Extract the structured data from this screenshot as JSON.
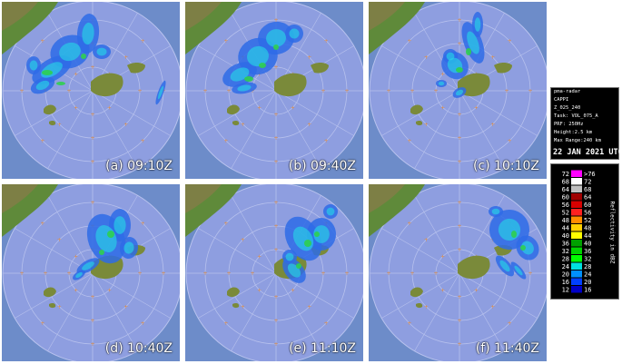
{
  "panels": [
    {
      "label": "(a) 09:10Z"
    },
    {
      "label": "(b) 09:40Z"
    },
    {
      "label": "(c) 10:10Z"
    },
    {
      "label": "(d) 10:40Z"
    },
    {
      "label": "(e) 11:10Z"
    },
    {
      "label": "(f) 11:40Z"
    }
  ],
  "info": {
    "lines": [
      "pma-radar",
      "CAPPI",
      "Z_025_240",
      "Task: VOL_075_A",
      "PRF: 250Hz",
      "Height:2.5 km",
      "Max Range:240 km"
    ],
    "date": "22 JAN 2021 UTC"
  },
  "legend": {
    "title": "Reflectivity in dBZ",
    "rows": [
      {
        "low": "72",
        "high": ">76",
        "color": "#ff00ff"
      },
      {
        "low": "68",
        "high": "72",
        "color": "#ffffff"
      },
      {
        "low": "64",
        "high": "68",
        "color": "#c0c0c0"
      },
      {
        "low": "60",
        "high": "64",
        "color": "#a00000"
      },
      {
        "low": "56",
        "high": "60",
        "color": "#d80000"
      },
      {
        "low": "52",
        "high": "56",
        "color": "#ff2020"
      },
      {
        "low": "48",
        "high": "52",
        "color": "#ff8c00"
      },
      {
        "low": "44",
        "high": "48",
        "color": "#ffd000"
      },
      {
        "low": "40",
        "high": "44",
        "color": "#ffff00"
      },
      {
        "low": "36",
        "high": "40",
        "color": "#00a000"
      },
      {
        "low": "32",
        "high": "36",
        "color": "#00d200"
      },
      {
        "low": "28",
        "high": "32",
        "color": "#00ff00"
      },
      {
        "low": "24",
        "high": "28",
        "color": "#00e0e0"
      },
      {
        "low": "20",
        "high": "24",
        "color": "#0090ff"
      },
      {
        "low": "16",
        "high": "20",
        "color": "#0040ff"
      },
      {
        "low": "12",
        "high": "16",
        "color": "#0000c8"
      }
    ]
  }
}
